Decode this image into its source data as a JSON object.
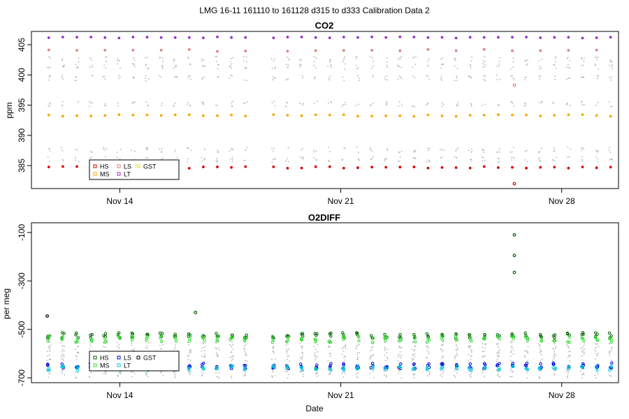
{
  "page_title": "LMG   16-11    161110 to 161128    d315 to d333   Calibration Data 2",
  "x_axis_label": "Date",
  "x_ticks": [
    {
      "label": "Nov 14",
      "day": 14
    },
    {
      "label": "Nov 21",
      "day": 21
    },
    {
      "label": "Nov 28",
      "day": 28
    }
  ],
  "colors": {
    "HS": "#dd0000",
    "MS": "#f5a800",
    "LS": "#e08080",
    "LT": "#9a30c8",
    "GST": "#f5d800",
    "HS2": "#006400",
    "MS2": "#33dd33",
    "LS2": "#0000dd",
    "LT2": "#00c8e0",
    "GST2": "#000000",
    "background": "#b4b4b4"
  },
  "chart_data": [
    {
      "type": "scatter",
      "title": "CO2",
      "ylabel": "ppm",
      "xlim": [
        11.2,
        29.8
      ],
      "ylim": [
        381.2,
        407.2
      ],
      "y_ticks": [
        385,
        390,
        395,
        400,
        405
      ],
      "x_range": {
        "start": "2016-11-10",
        "end": "2016-11-28"
      },
      "legend": {
        "position": "bottom-left",
        "entries": [
          {
            "label": "HS",
            "color": "#dd0000"
          },
          {
            "label": "LS",
            "color": "#e08080"
          },
          {
            "label": "GST",
            "color": "#f5d800"
          },
          {
            "label": "MS",
            "color": "#f5a800"
          },
          {
            "label": "LT",
            "color": "#9a30c8"
          }
        ]
      },
      "series": [
        {
          "name": "HS",
          "typical_value": 384.7
        },
        {
          "name": "MS",
          "typical_value": 393.3
        },
        {
          "name": "LS",
          "typical_value": 404.1
        },
        {
          "name": "LT",
          "typical_value": 406.2
        }
      ],
      "annotations": [
        {
          "series": "HS",
          "day": 26.5,
          "value": 382.0
        },
        {
          "series": "LS",
          "day": 26.5,
          "value": 398.3
        }
      ],
      "background_cloud": [
        386.0,
        387.6,
        395.2,
        399.5,
        401.4,
        402.6
      ]
    },
    {
      "type": "scatter",
      "title": "O2DIFF",
      "ylabel": "per meg",
      "xlim": [
        11.2,
        29.8
      ],
      "ylim": [
        -720,
        -60
      ],
      "y_ticks": [
        -100,
        -300,
        -500,
        -700
      ],
      "x_range": {
        "start": "2016-11-10",
        "end": "2016-11-28"
      },
      "legend": {
        "position": "bottom-left",
        "entries": [
          {
            "label": "HS",
            "color": "#006400"
          },
          {
            "label": "LS",
            "color": "#0000dd"
          },
          {
            "label": "GST",
            "color": "#000000"
          },
          {
            "label": "MS",
            "color": "#33dd33"
          },
          {
            "label": "LT",
            "color": "#00c8e0"
          }
        ]
      },
      "series": [
        {
          "name": "HS",
          "typical_value": -525
        },
        {
          "name": "MS",
          "typical_value": -540
        },
        {
          "name": "LS",
          "typical_value": -650
        },
        {
          "name": "LT",
          "typical_value": -660
        }
      ],
      "annotations": [
        {
          "series": "GST",
          "day": 11.7,
          "value": -445
        },
        {
          "series": "HS",
          "day": 26.5,
          "value": -110
        },
        {
          "series": "HS",
          "day": 26.5,
          "value": -195
        },
        {
          "series": "HS",
          "day": 26.5,
          "value": -265
        },
        {
          "series": "HS",
          "day": 16.4,
          "value": -430
        }
      ],
      "background_cloud": [
        -560,
        -580,
        -600,
        -620,
        -670,
        -690
      ]
    }
  ]
}
